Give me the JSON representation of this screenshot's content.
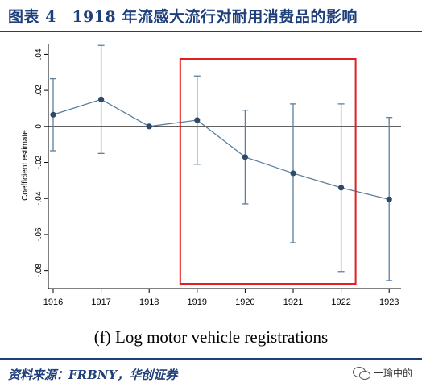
{
  "header": {
    "title": "图表 4　1918 年流感大流行对耐用消费品的影响"
  },
  "footer": {
    "source": "资料来源：FRBNY，华创证券",
    "watermark": "一瑜中的",
    "watermark_icon": "wechat-icon"
  },
  "chart_data": {
    "type": "scatter",
    "subtitle": "(f) Log motor vehicle registrations",
    "ylabel": "Coefficient estimate",
    "xlabel": "",
    "ylim": [
      -0.09,
      0.046
    ],
    "yticks": [
      0.04,
      0.02,
      0,
      -0.02,
      -0.04,
      -0.06,
      -0.08
    ],
    "ytick_labels": [
      ".04",
      ".02",
      "0",
      "-.02",
      "-.04",
      "-.06",
      "-.08"
    ],
    "categories": [
      "1916",
      "1917",
      "1918",
      "1919",
      "1920",
      "1921",
      "1922",
      "1923"
    ],
    "series": [
      {
        "values": [
          0.0065,
          0.015,
          0.0,
          0.0035,
          -0.017,
          -0.026,
          -0.034,
          -0.0405
        ],
        "ci_low": [
          -0.0135,
          -0.015,
          0.0,
          -0.021,
          -0.043,
          -0.0645,
          -0.0805,
          -0.0855
        ],
        "ci_high": [
          0.0265,
          0.045,
          0.0,
          0.028,
          0.009,
          0.0125,
          0.0125,
          0.005
        ]
      }
    ],
    "reference_line": 0,
    "highlight_range": [
      "1919",
      "1922"
    ],
    "grid": false,
    "colors": {
      "series": "#2e4a66",
      "errorbar": "#5b7f9f",
      "highlight": "#e02020",
      "zero_line": "#000000"
    }
  }
}
